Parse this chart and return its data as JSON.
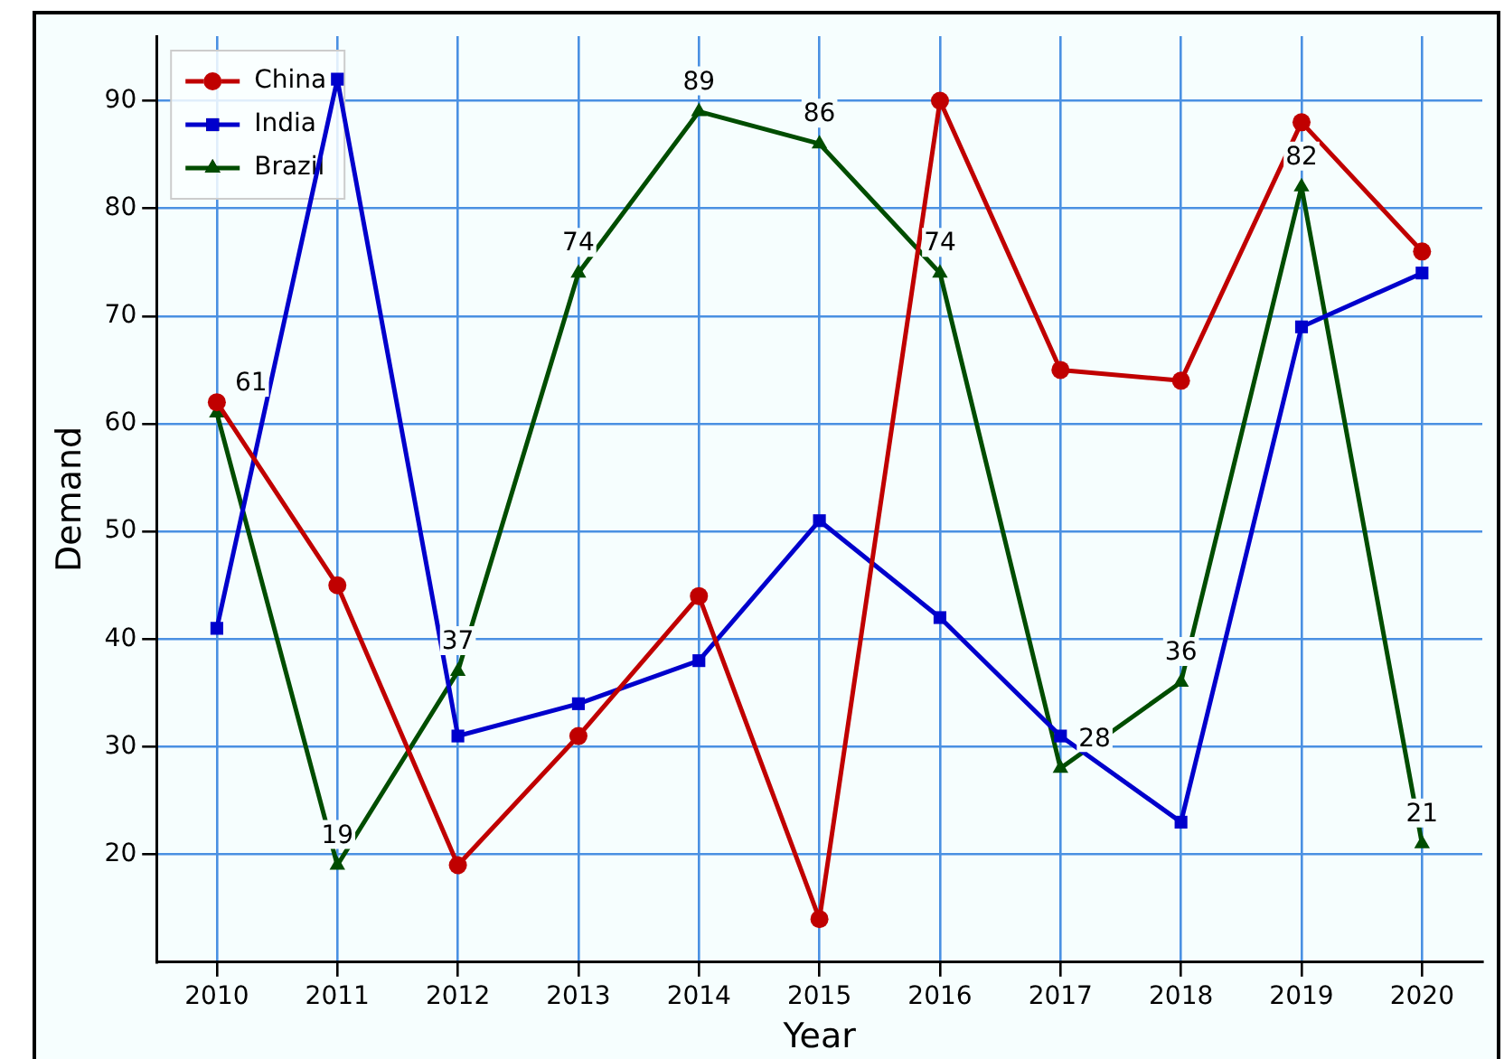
{
  "chart_data": {
    "type": "line",
    "categories": [
      "2010",
      "2011",
      "2012",
      "2013",
      "2014",
      "2015",
      "2016",
      "2017",
      "2018",
      "2019",
      "2020"
    ],
    "xlabel": "Year",
    "ylabel": "Demand",
    "ylim": [
      10,
      96
    ],
    "yticks": [
      20,
      30,
      40,
      50,
      60,
      70,
      80,
      90
    ],
    "grid": true,
    "legend": "top left",
    "line_style": "solid",
    "series": [
      {
        "name": "China",
        "color": "#c00000",
        "marker": "circle",
        "values": [
          62,
          45,
          19,
          31,
          44,
          14,
          90,
          65,
          64,
          88,
          76
        ]
      },
      {
        "name": "India",
        "color": "#0000cc",
        "marker": "square",
        "values": [
          41,
          92,
          31,
          34,
          38,
          51,
          42,
          31,
          23,
          69,
          74
        ]
      },
      {
        "name": "Brazil",
        "color": "#004d00",
        "marker": "triangle",
        "values": [
          61,
          19,
          37,
          74,
          89,
          86,
          74,
          28,
          36,
          82,
          21
        ],
        "value_labels": [
          "61",
          "19",
          "37",
          "74",
          "89",
          "86",
          "74",
          "28",
          "36",
          "82",
          "21"
        ]
      }
    ]
  }
}
